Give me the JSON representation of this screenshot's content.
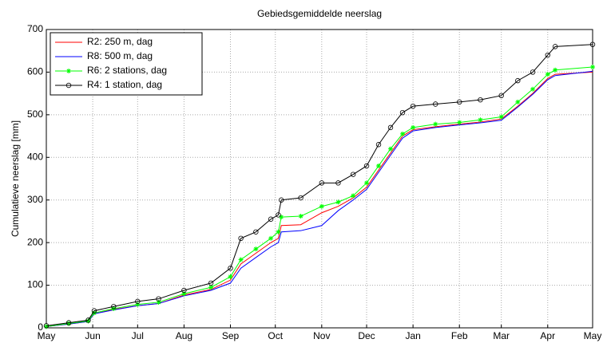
{
  "chart_data": {
    "type": "line",
    "title": "Gebiedsgemiddelde neerslag",
    "ylabel": "Cumulatieve neerslag [mm]",
    "x": [
      0,
      15,
      28,
      32,
      45,
      61,
      75,
      92,
      110,
      123,
      130,
      140,
      150,
      155,
      157,
      170,
      184,
      195,
      205,
      214,
      222,
      230,
      238,
      245,
      260,
      276,
      290,
      304,
      315,
      325,
      335,
      340,
      365
    ],
    "xlim": [
      0,
      365
    ],
    "xticks": [
      {
        "value": 0,
        "label": "May"
      },
      {
        "value": 31,
        "label": "Jun"
      },
      {
        "value": 61,
        "label": "Jul"
      },
      {
        "value": 92,
        "label": "Aug"
      },
      {
        "value": 123,
        "label": "Sep"
      },
      {
        "value": 153,
        "label": "Oct"
      },
      {
        "value": 184,
        "label": "Nov"
      },
      {
        "value": 214,
        "label": "Dec"
      },
      {
        "value": 245,
        "label": "Jan"
      },
      {
        "value": 276,
        "label": "Feb"
      },
      {
        "value": 304,
        "label": "Mar"
      },
      {
        "value": 335,
        "label": "Apr"
      },
      {
        "value": 365,
        "label": "May"
      }
    ],
    "ylim": [
      0,
      700
    ],
    "yticks": [
      0,
      100,
      200,
      300,
      400,
      500,
      600,
      700
    ],
    "grid": true,
    "legend": "upper-left",
    "series": [
      {
        "name": "R2: 250 m, dag",
        "color": "#ff0000",
        "marker": "none",
        "values": [
          3,
          9,
          15,
          33,
          43,
          52,
          57,
          77,
          90,
          112,
          150,
          175,
          200,
          210,
          240,
          242,
          270,
          285,
          305,
          330,
          370,
          410,
          450,
          465,
          472,
          478,
          483,
          490,
          520,
          550,
          585,
          595,
          600
        ]
      },
      {
        "name": "R8: 500 m, dag",
        "color": "#0000ff",
        "marker": "none",
        "values": [
          3,
          9,
          15,
          33,
          42,
          52,
          57,
          75,
          88,
          105,
          140,
          165,
          190,
          200,
          225,
          228,
          240,
          275,
          300,
          325,
          365,
          405,
          445,
          462,
          470,
          476,
          481,
          487,
          518,
          548,
          582,
          592,
          602
        ]
      },
      {
        "name": "R6: 2 stations, dag",
        "color": "#00ff00",
        "marker": "star",
        "values": [
          3,
          10,
          16,
          35,
          45,
          55,
          60,
          80,
          95,
          120,
          160,
          185,
          210,
          225,
          260,
          262,
          285,
          295,
          310,
          340,
          380,
          420,
          455,
          470,
          478,
          482,
          488,
          495,
          530,
          560,
          595,
          605,
          612
        ]
      },
      {
        "name": "R4: 1 station, dag",
        "color": "#000000",
        "marker": "circle",
        "values": [
          5,
          12,
          18,
          40,
          50,
          62,
          68,
          88,
          105,
          140,
          210,
          225,
          255,
          265,
          300,
          305,
          340,
          340,
          360,
          380,
          430,
          470,
          505,
          520,
          525,
          530,
          535,
          545,
          580,
          600,
          640,
          660,
          665
        ]
      }
    ]
  }
}
